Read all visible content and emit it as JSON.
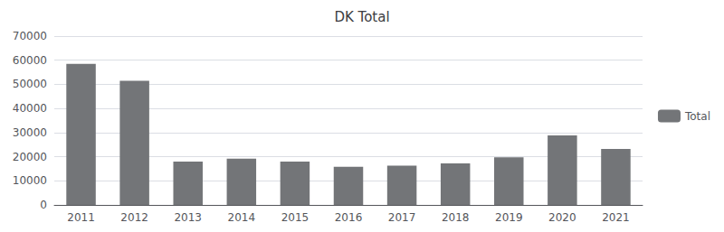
{
  "chart_data": {
    "type": "bar",
    "title": "DK Total",
    "categories": [
      "2011",
      "2012",
      "2013",
      "2014",
      "2015",
      "2016",
      "2017",
      "2018",
      "2019",
      "2020",
      "2021"
    ],
    "series": [
      {
        "name": "Total",
        "color": "#737578",
        "values": [
          58500,
          51500,
          18000,
          19200,
          18000,
          15800,
          16300,
          17200,
          19700,
          28800,
          23200
        ]
      }
    ],
    "ylim": [
      0,
      70000
    ],
    "yticks": [
      0,
      10000,
      20000,
      30000,
      40000,
      50000,
      60000,
      70000
    ],
    "grid": true,
    "legend": "right"
  }
}
